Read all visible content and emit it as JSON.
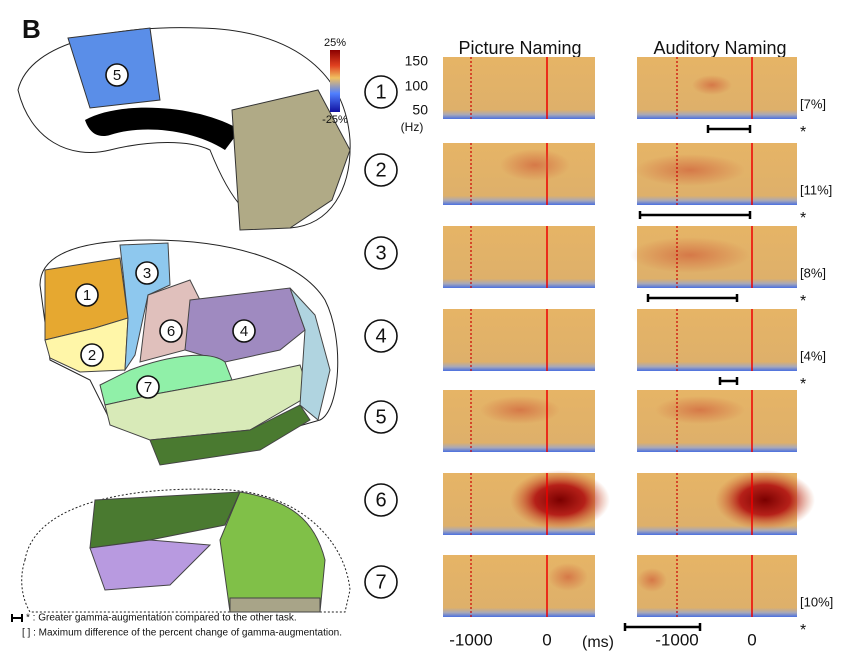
{
  "panel_label": "B",
  "colorbar": {
    "max_label": "25%",
    "min_label": "-25%"
  },
  "columns": [
    "Picture Naming",
    "Auditory Naming"
  ],
  "freq_axis": {
    "ticks": [
      "150",
      "100",
      "50"
    ],
    "unit": "(Hz)"
  },
  "time_axis": {
    "ticks": [
      "-1000",
      "0"
    ],
    "unit": "(ms)"
  },
  "rows": [
    {
      "label": "1",
      "difference": "[7%]",
      "marker": "*"
    },
    {
      "label": "2",
      "difference": "[11%]",
      "marker": "*"
    },
    {
      "label": "3",
      "difference": "[8%]",
      "marker": "*"
    },
    {
      "label": "4",
      "difference": "[4%]",
      "marker": "*"
    },
    {
      "label": "5"
    },
    {
      "label": "6"
    },
    {
      "label": "7",
      "difference": "[10%]",
      "marker": "*"
    }
  ],
  "brain_labels": [
    "5",
    "1",
    "3",
    "6",
    "4",
    "2",
    "7"
  ],
  "legend": [
    "* : Greater gamma-augmentation  compared to the other task.",
    "[ ] : Maximum  difference of the percent change of gamma-augmentation."
  ]
}
